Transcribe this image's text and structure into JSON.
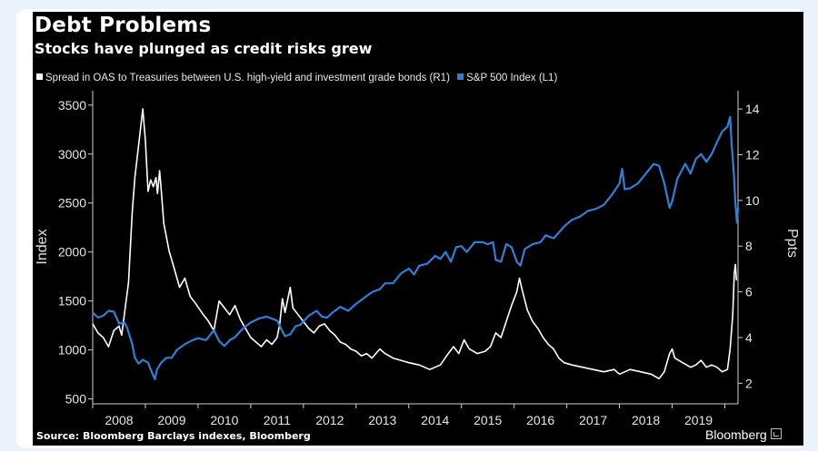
{
  "colors": {
    "background": "#000000",
    "page_background": "#eaf3fb",
    "spread_line": "#ffffff",
    "sp500_line": "#2f7fd8"
  },
  "header": {
    "title": "Debt Problems",
    "subtitle": "Stocks have plunged as credit risks grew"
  },
  "footer": {
    "source": "Source: Bloomberg Barclays indexes, Bloomberg",
    "brand": "Bloomberg",
    "brand_icon": "chart-box-icon"
  },
  "chart_data": {
    "type": "line",
    "title": "Debt Problems",
    "subtitle": "Stocks have plunged as credit risks grew",
    "legend_position": "top-left",
    "grid": false,
    "x_ticks": [
      "2008",
      "2009",
      "2010",
      "2011",
      "2012",
      "2013",
      "2014",
      "2015",
      "2016",
      "2017",
      "2018",
      "2019"
    ],
    "xlim": [
      2008.0,
      2020.25
    ],
    "y_left": {
      "label": "Index",
      "lim": [
        450,
        3600
      ],
      "ticks": [
        "500",
        "1000",
        "1500",
        "2000",
        "2500",
        "3000",
        "3500"
      ]
    },
    "y_right": {
      "label": "Ppts",
      "lim": [
        1.1,
        14.6
      ],
      "ticks": [
        "2",
        "4",
        "6",
        "8",
        "10",
        "12",
        "14"
      ]
    },
    "series": [
      {
        "name": "Spread in OAS to Treasuries between U.S. high-yield and investment grade bonds (R1)",
        "axis": "right",
        "color": "#ffffff",
        "points": [
          [
            2008.0,
            4.6
          ],
          [
            2008.1,
            4.2
          ],
          [
            2008.2,
            4.0
          ],
          [
            2008.3,
            3.6
          ],
          [
            2008.4,
            4.3
          ],
          [
            2008.5,
            4.5
          ],
          [
            2008.55,
            4.1
          ],
          [
            2008.6,
            5.0
          ],
          [
            2008.68,
            6.4
          ],
          [
            2008.75,
            9.5
          ],
          [
            2008.8,
            11.0
          ],
          [
            2008.85,
            12.0
          ],
          [
            2008.9,
            13.0
          ],
          [
            2008.95,
            14.0
          ],
          [
            2009.0,
            12.6
          ],
          [
            2009.05,
            10.4
          ],
          [
            2009.1,
            10.9
          ],
          [
            2009.15,
            10.6
          ],
          [
            2009.2,
            11.0
          ],
          [
            2009.23,
            10.3
          ],
          [
            2009.27,
            11.3
          ],
          [
            2009.3,
            10.5
          ],
          [
            2009.35,
            9.0
          ],
          [
            2009.45,
            7.8
          ],
          [
            2009.55,
            7.0
          ],
          [
            2009.65,
            6.2
          ],
          [
            2009.75,
            6.6
          ],
          [
            2009.85,
            5.8
          ],
          [
            2009.95,
            5.5
          ],
          [
            2010.1,
            5.0
          ],
          [
            2010.2,
            4.7
          ],
          [
            2010.3,
            4.3
          ],
          [
            2010.4,
            5.6
          ],
          [
            2010.5,
            5.3
          ],
          [
            2010.6,
            5.0
          ],
          [
            2010.7,
            5.4
          ],
          [
            2010.8,
            4.8
          ],
          [
            2010.9,
            4.4
          ],
          [
            2011.0,
            4.0
          ],
          [
            2011.1,
            3.8
          ],
          [
            2011.2,
            3.6
          ],
          [
            2011.3,
            3.9
          ],
          [
            2011.4,
            3.7
          ],
          [
            2011.5,
            4.0
          ],
          [
            2011.55,
            4.6
          ],
          [
            2011.6,
            5.7
          ],
          [
            2011.65,
            5.1
          ],
          [
            2011.75,
            6.2
          ],
          [
            2011.8,
            5.3
          ],
          [
            2011.9,
            5.0
          ],
          [
            2012.0,
            4.7
          ],
          [
            2012.1,
            4.4
          ],
          [
            2012.2,
            4.2
          ],
          [
            2012.3,
            4.5
          ],
          [
            2012.4,
            4.6
          ],
          [
            2012.5,
            4.3
          ],
          [
            2012.6,
            4.1
          ],
          [
            2012.7,
            3.8
          ],
          [
            2012.8,
            3.7
          ],
          [
            2012.9,
            3.5
          ],
          [
            2013.0,
            3.4
          ],
          [
            2013.1,
            3.2
          ],
          [
            2013.2,
            3.3
          ],
          [
            2013.3,
            3.1
          ],
          [
            2013.45,
            3.5
          ],
          [
            2013.55,
            3.3
          ],
          [
            2013.7,
            3.1
          ],
          [
            2013.85,
            3.0
          ],
          [
            2014.0,
            2.9
          ],
          [
            2014.2,
            2.8
          ],
          [
            2014.4,
            2.6
          ],
          [
            2014.5,
            2.7
          ],
          [
            2014.6,
            2.8
          ],
          [
            2014.75,
            3.3
          ],
          [
            2014.85,
            3.6
          ],
          [
            2014.95,
            3.3
          ],
          [
            2015.05,
            3.9
          ],
          [
            2015.15,
            3.5
          ],
          [
            2015.3,
            3.3
          ],
          [
            2015.45,
            3.4
          ],
          [
            2015.55,
            3.6
          ],
          [
            2015.65,
            4.2
          ],
          [
            2015.75,
            4.0
          ],
          [
            2015.85,
            4.7
          ],
          [
            2015.95,
            5.4
          ],
          [
            2016.05,
            6.0
          ],
          [
            2016.1,
            6.6
          ],
          [
            2016.15,
            6.1
          ],
          [
            2016.25,
            5.2
          ],
          [
            2016.35,
            4.7
          ],
          [
            2016.45,
            4.4
          ],
          [
            2016.55,
            4.0
          ],
          [
            2016.65,
            3.7
          ],
          [
            2016.75,
            3.5
          ],
          [
            2016.85,
            3.1
          ],
          [
            2016.95,
            2.9
          ],
          [
            2017.1,
            2.8
          ],
          [
            2017.3,
            2.7
          ],
          [
            2017.5,
            2.6
          ],
          [
            2017.7,
            2.5
          ],
          [
            2017.9,
            2.6
          ],
          [
            2018.0,
            2.4
          ],
          [
            2018.2,
            2.6
          ],
          [
            2018.4,
            2.5
          ],
          [
            2018.6,
            2.4
          ],
          [
            2018.75,
            2.2
          ],
          [
            2018.85,
            2.5
          ],
          [
            2018.95,
            3.3
          ],
          [
            2019.0,
            3.5
          ],
          [
            2019.05,
            3.1
          ],
          [
            2019.2,
            2.9
          ],
          [
            2019.35,
            2.7
          ],
          [
            2019.45,
            2.8
          ],
          [
            2019.55,
            3.0
          ],
          [
            2019.65,
            2.7
          ],
          [
            2019.75,
            2.8
          ],
          [
            2019.85,
            2.7
          ],
          [
            2019.95,
            2.5
          ],
          [
            2020.05,
            2.6
          ],
          [
            2020.1,
            3.5
          ],
          [
            2020.15,
            5.0
          ],
          [
            2020.18,
            6.8
          ],
          [
            2020.2,
            7.2
          ],
          [
            2020.22,
            6.5
          ]
        ]
      },
      {
        "name": "S&P 500 Index  (L1)",
        "axis": "left",
        "color": "#2f7fd8",
        "points": [
          [
            2008.0,
            1380
          ],
          [
            2008.1,
            1330
          ],
          [
            2008.2,
            1350
          ],
          [
            2008.3,
            1400
          ],
          [
            2008.4,
            1390
          ],
          [
            2008.5,
            1270
          ],
          [
            2008.6,
            1280
          ],
          [
            2008.65,
            1230
          ],
          [
            2008.75,
            1060
          ],
          [
            2008.8,
            920
          ],
          [
            2008.87,
            860
          ],
          [
            2008.95,
            900
          ],
          [
            2009.05,
            870
          ],
          [
            2009.1,
            800
          ],
          [
            2009.18,
            700
          ],
          [
            2009.22,
            800
          ],
          [
            2009.3,
            870
          ],
          [
            2009.4,
            920
          ],
          [
            2009.5,
            920
          ],
          [
            2009.6,
            1000
          ],
          [
            2009.75,
            1060
          ],
          [
            2009.9,
            1100
          ],
          [
            2010.0,
            1120
          ],
          [
            2010.15,
            1100
          ],
          [
            2010.3,
            1200
          ],
          [
            2010.4,
            1090
          ],
          [
            2010.5,
            1040
          ],
          [
            2010.6,
            1100
          ],
          [
            2010.7,
            1130
          ],
          [
            2010.8,
            1190
          ],
          [
            2010.9,
            1240
          ],
          [
            2011.0,
            1280
          ],
          [
            2011.15,
            1320
          ],
          [
            2011.3,
            1340
          ],
          [
            2011.4,
            1320
          ],
          [
            2011.5,
            1300
          ],
          [
            2011.6,
            1190
          ],
          [
            2011.65,
            1140
          ],
          [
            2011.75,
            1160
          ],
          [
            2011.85,
            1240
          ],
          [
            2011.95,
            1260
          ],
          [
            2012.1,
            1350
          ],
          [
            2012.25,
            1400
          ],
          [
            2012.35,
            1340
          ],
          [
            2012.45,
            1330
          ],
          [
            2012.55,
            1380
          ],
          [
            2012.7,
            1440
          ],
          [
            2012.85,
            1400
          ],
          [
            2013.0,
            1470
          ],
          [
            2013.15,
            1530
          ],
          [
            2013.3,
            1590
          ],
          [
            2013.45,
            1620
          ],
          [
            2013.55,
            1680
          ],
          [
            2013.7,
            1680
          ],
          [
            2013.85,
            1780
          ],
          [
            2014.0,
            1830
          ],
          [
            2014.1,
            1770
          ],
          [
            2014.2,
            1860
          ],
          [
            2014.35,
            1880
          ],
          [
            2014.5,
            1960
          ],
          [
            2014.6,
            1930
          ],
          [
            2014.7,
            2000
          ],
          [
            2014.8,
            1900
          ],
          [
            2014.9,
            2050
          ],
          [
            2015.0,
            2060
          ],
          [
            2015.1,
            2000
          ],
          [
            2015.25,
            2100
          ],
          [
            2015.4,
            2100
          ],
          [
            2015.5,
            2080
          ],
          [
            2015.6,
            2100
          ],
          [
            2015.65,
            1920
          ],
          [
            2015.75,
            1900
          ],
          [
            2015.85,
            2080
          ],
          [
            2015.95,
            2050
          ],
          [
            2016.05,
            1900
          ],
          [
            2016.12,
            1860
          ],
          [
            2016.2,
            2030
          ],
          [
            2016.35,
            2080
          ],
          [
            2016.5,
            2100
          ],
          [
            2016.6,
            2170
          ],
          [
            2016.75,
            2140
          ],
          [
            2016.85,
            2200
          ],
          [
            2016.95,
            2260
          ],
          [
            2017.1,
            2330
          ],
          [
            2017.25,
            2360
          ],
          [
            2017.4,
            2420
          ],
          [
            2017.55,
            2440
          ],
          [
            2017.7,
            2480
          ],
          [
            2017.85,
            2580
          ],
          [
            2018.0,
            2700
          ],
          [
            2018.05,
            2850
          ],
          [
            2018.1,
            2640
          ],
          [
            2018.2,
            2650
          ],
          [
            2018.35,
            2700
          ],
          [
            2018.5,
            2800
          ],
          [
            2018.65,
            2900
          ],
          [
            2018.75,
            2880
          ],
          [
            2018.85,
            2700
          ],
          [
            2018.95,
            2450
          ],
          [
            2019.0,
            2520
          ],
          [
            2019.1,
            2750
          ],
          [
            2019.25,
            2900
          ],
          [
            2019.35,
            2800
          ],
          [
            2019.45,
            2950
          ],
          [
            2019.55,
            3000
          ],
          [
            2019.65,
            2920
          ],
          [
            2019.75,
            3000
          ],
          [
            2019.85,
            3120
          ],
          [
            2019.95,
            3230
          ],
          [
            2020.05,
            3280
          ],
          [
            2020.1,
            3380
          ],
          [
            2020.13,
            3100
          ],
          [
            2020.17,
            2800
          ],
          [
            2020.2,
            2500
          ],
          [
            2020.23,
            2300
          ],
          [
            2020.25,
            2450
          ]
        ]
      }
    ]
  }
}
